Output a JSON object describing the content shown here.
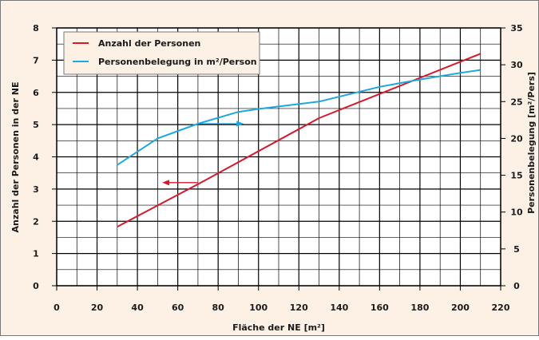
{
  "chart_data": {
    "type": "line",
    "xlabel": "Fläche der NE [m²]",
    "ylabel_left": "Anzahl der Personen in der NE",
    "ylabel_right": "Personenbelegung [m²/Pers]",
    "xlim": [
      0,
      220
    ],
    "ylim_left": [
      0,
      8
    ],
    "ylim_right": [
      0,
      35
    ],
    "x_ticks": [
      "0",
      "20",
      "40",
      "60",
      "80",
      "100",
      "120",
      "140",
      "160",
      "180",
      "200",
      "220"
    ],
    "y_left_ticks": [
      "0",
      "1",
      "2",
      "3",
      "4",
      "5",
      "6",
      "7",
      "8"
    ],
    "y_right_ticks": [
      "0",
      "5",
      "10",
      "15",
      "20",
      "25",
      "30",
      "35"
    ],
    "grid": true,
    "legend_position": "top-left",
    "series": [
      {
        "name": "Anzahl der Personen",
        "axis": "left",
        "color": "#d7192a",
        "x": [
          30,
          70,
          130,
          210
        ],
        "y": [
          1.83,
          3.15,
          5.2,
          7.2
        ]
      },
      {
        "name": "Personenbelegung in m²/Person",
        "axis": "right",
        "color": "#1ba8e0",
        "x": [
          30,
          50,
          70,
          90,
          100,
          130,
          160,
          180,
          200,
          210
        ],
        "y": [
          16.4,
          20.0,
          22.0,
          23.6,
          24.0,
          25.0,
          27.0,
          28.0,
          28.9,
          29.3
        ]
      }
    ],
    "annotations": [
      {
        "type": "arrow",
        "color": "#d7192a",
        "axis": "left",
        "from": [
          70,
          3.2
        ],
        "to": [
          53,
          3.2
        ],
        "meaning": "points to left axis"
      },
      {
        "type": "arrow",
        "color": "#1ba8e0",
        "axis": "right",
        "from": [
          70,
          22.0
        ],
        "to": [
          92,
          22.0
        ],
        "meaning": "points to right axis"
      }
    ]
  }
}
